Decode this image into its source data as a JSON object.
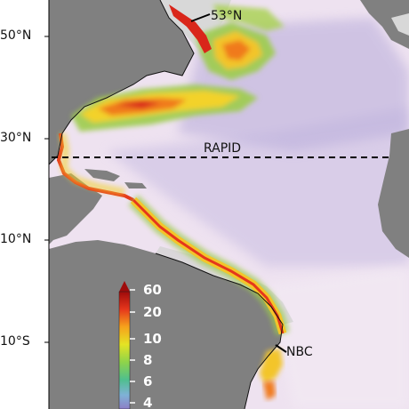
{
  "lat_labels": {
    "n50": "50°N",
    "n30": "30°N",
    "n10": "10°N",
    "s10": "10°S"
  },
  "annotations": {
    "section_53n": "53°N",
    "rapid": "RAPID",
    "nbc": "NBC"
  },
  "colorbar": {
    "ticks": [
      "60",
      "20",
      "10",
      "8",
      "6",
      "4"
    ]
  },
  "colors": {
    "land": "#808080",
    "ocean_low": "#efe3f1",
    "ocean_mid": "#b6a9d7",
    "shelf": "#d9d9d9",
    "section_line": "#000000"
  }
}
